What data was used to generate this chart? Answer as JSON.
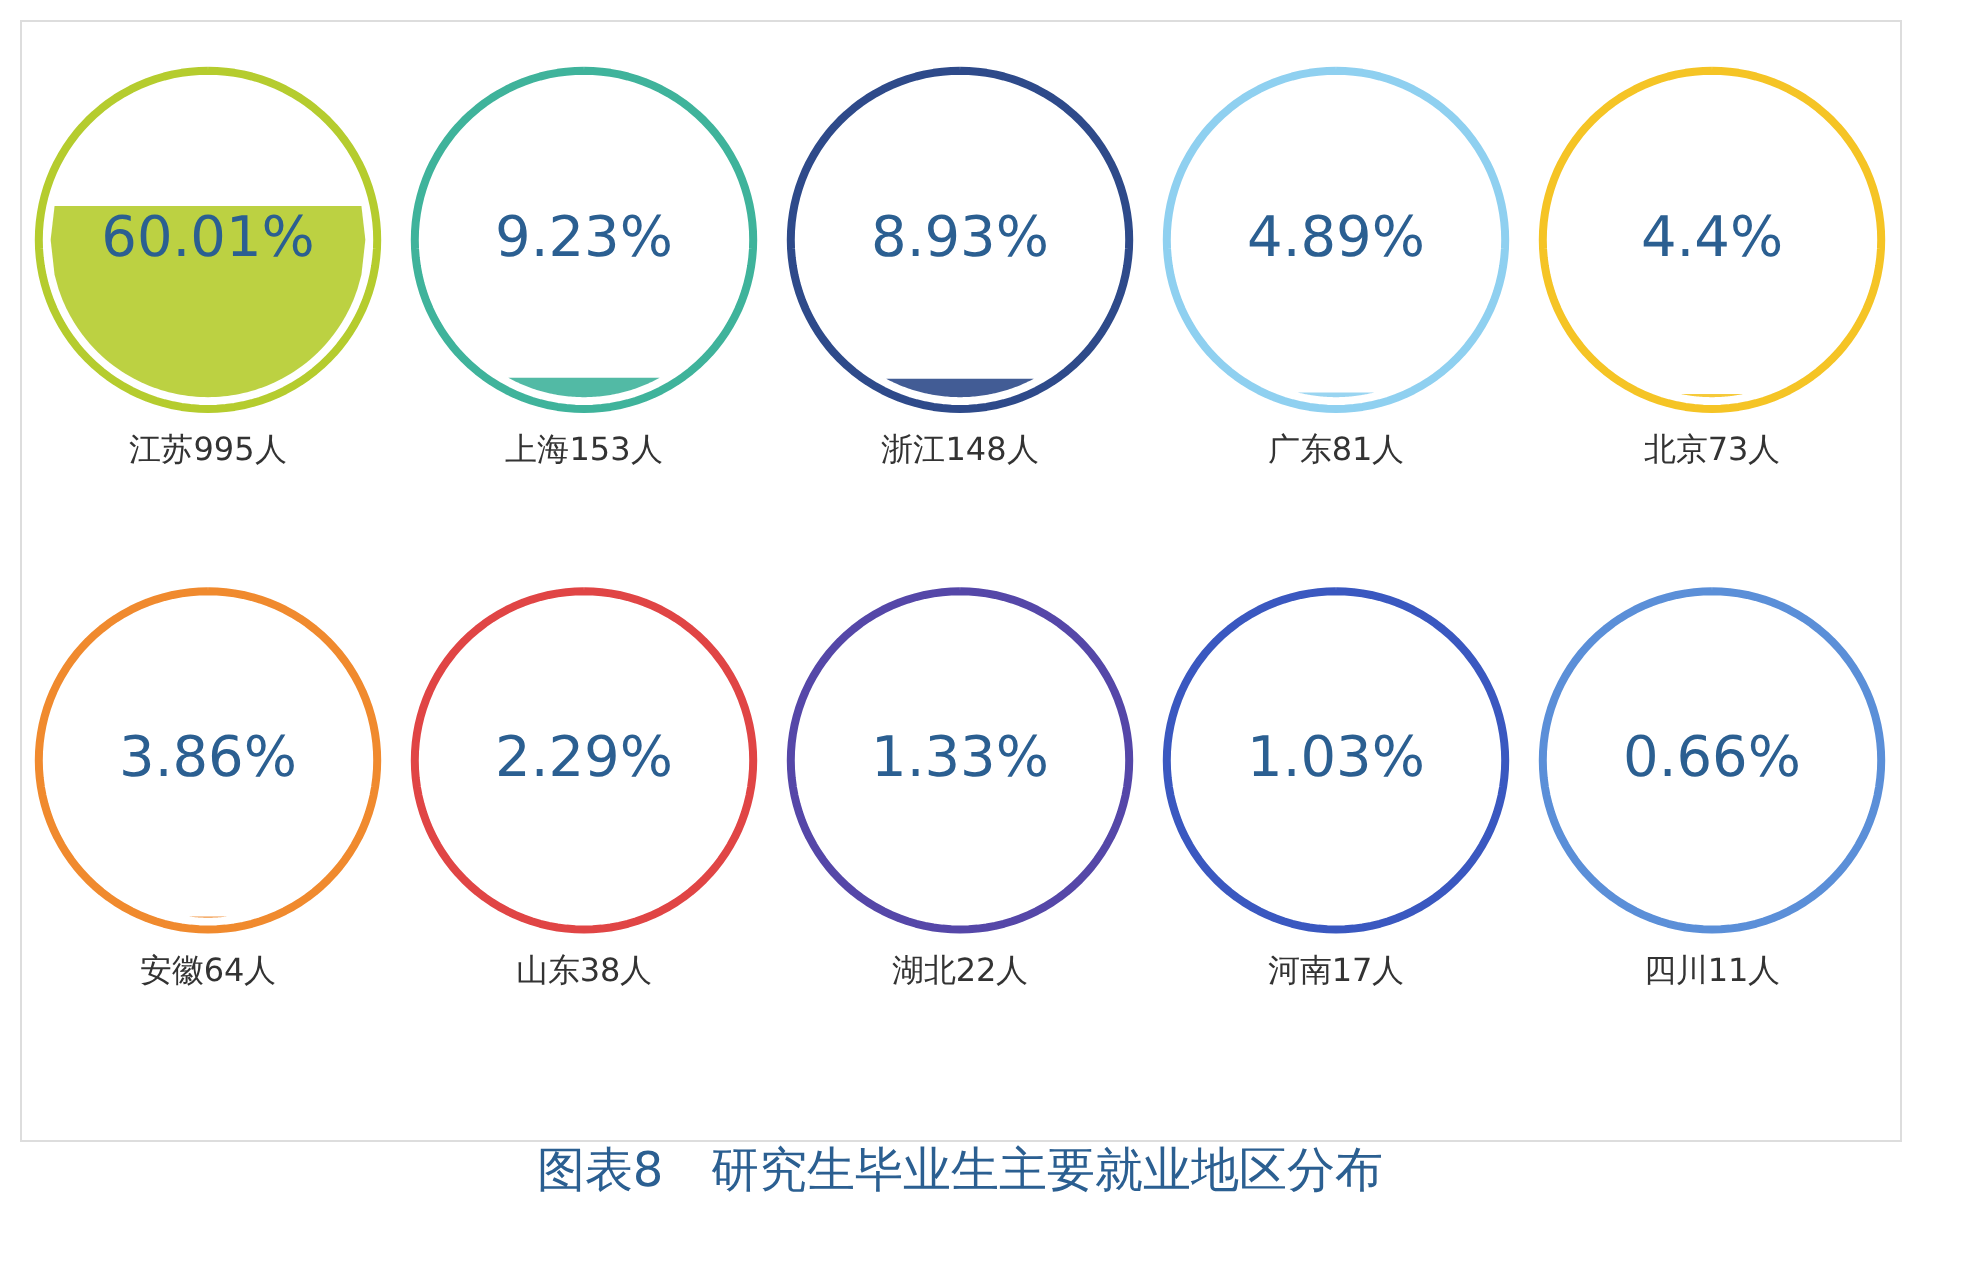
{
  "chart_data": {
    "type": "other",
    "title": "图表8　研究生毕业生主要就业地区分布",
    "categories": [
      "江苏995人",
      "上海153人",
      "浙江148人",
      "广东81人",
      "北京73人",
      "安徽64人",
      "山东38人",
      "湖北22人",
      "河南17人",
      "四川11人"
    ],
    "values": [
      60.01,
      9.23,
      8.93,
      4.89,
      4.4,
      3.86,
      2.29,
      1.33,
      1.03,
      0.66
    ],
    "value_labels": [
      "60.01%",
      "9.23%",
      "8.93%",
      "4.89%",
      "4.4%",
      "3.86%",
      "2.29%",
      "1.33%",
      "1.03%",
      "0.66%"
    ],
    "colors": [
      "#b5cc2e",
      "#3fb39b",
      "#2e4a8a",
      "#8fd0f0",
      "#f5c425",
      "#f08a2e",
      "#e04545",
      "#5547a8",
      "#3a58c0",
      "#5b8fd8"
    ]
  }
}
